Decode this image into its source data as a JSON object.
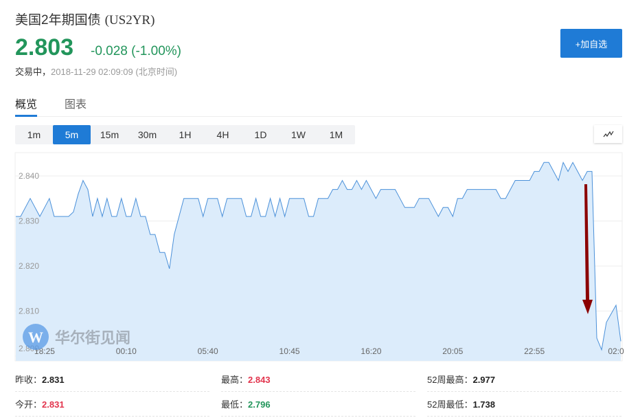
{
  "header": {
    "title": "美国2年期国债",
    "code": "(US2YR)",
    "price": "2.803",
    "change": "-0.028 (-1.00%)",
    "status": "交易中，",
    "timestamp": "2018-11-29 02:09:09",
    "timezone": "(北京时间)",
    "add_button": "+加自选",
    "price_color": "#22955b"
  },
  "tabs": [
    {
      "label": "概览",
      "active": true
    },
    {
      "label": "图表",
      "active": false
    }
  ],
  "periods": [
    {
      "label": "1m"
    },
    {
      "label": "5m",
      "active": true
    },
    {
      "label": "15m"
    },
    {
      "label": "30m"
    },
    {
      "label": "1H"
    },
    {
      "label": "4H"
    },
    {
      "label": "1D"
    },
    {
      "label": "1W"
    },
    {
      "label": "1M"
    }
  ],
  "chart_type_icon": "line-chart-icon",
  "watermark": "华尔街见闻",
  "chart_data": {
    "type": "area",
    "ylim": [
      2.8,
      2.845
    ],
    "y_ticks": [
      "2.800",
      "2.810",
      "2.820",
      "2.830",
      "2.840"
    ],
    "x_ticks": [
      {
        "label": "18:25",
        "index": 6
      },
      {
        "label": "00:10",
        "index": 23
      },
      {
        "label": "05:40",
        "index": 40
      },
      {
        "label": "10:45",
        "index": 57
      },
      {
        "label": "16:20",
        "index": 74
      },
      {
        "label": "20:05",
        "index": 91
      },
      {
        "label": "22:55",
        "index": 108
      },
      {
        "label": "02:0",
        "index": 125
      }
    ],
    "grid": true,
    "line_color": "#4a90d9",
    "fill_color": "#dcecfb",
    "annotation": {
      "type": "arrow",
      "color": "#8b0000",
      "direction": "down"
    },
    "values": [
      2.831,
      2.831,
      2.833,
      2.835,
      2.833,
      2.831,
      2.833,
      2.835,
      2.831,
      2.831,
      2.831,
      2.831,
      2.832,
      2.836,
      2.839,
      2.837,
      2.831,
      2.835,
      2.831,
      2.835,
      2.831,
      2.831,
      2.835,
      2.831,
      2.831,
      2.835,
      2.831,
      2.831,
      2.827,
      2.827,
      2.823,
      2.823,
      2.8194,
      2.827,
      2.831,
      2.835,
      2.835,
      2.835,
      2.835,
      2.831,
      2.835,
      2.835,
      2.835,
      2.831,
      2.835,
      2.835,
      2.835,
      2.835,
      2.831,
      2.831,
      2.835,
      2.831,
      2.831,
      2.835,
      2.831,
      2.835,
      2.831,
      2.835,
      2.835,
      2.835,
      2.835,
      2.831,
      2.831,
      2.835,
      2.835,
      2.835,
      2.837,
      2.837,
      2.839,
      2.837,
      2.837,
      2.839,
      2.837,
      2.839,
      2.837,
      2.835,
      2.837,
      2.837,
      2.837,
      2.837,
      2.835,
      2.833,
      2.833,
      2.833,
      2.835,
      2.835,
      2.835,
      2.833,
      2.831,
      2.833,
      2.833,
      2.831,
      2.835,
      2.835,
      2.837,
      2.837,
      2.837,
      2.837,
      2.837,
      2.837,
      2.837,
      2.835,
      2.835,
      2.837,
      2.839,
      2.839,
      2.839,
      2.839,
      2.841,
      2.841,
      2.843,
      2.843,
      2.841,
      2.839,
      2.843,
      2.841,
      2.843,
      2.841,
      2.839,
      2.841,
      2.841,
      2.804,
      2.8014,
      2.8075,
      2.8094,
      2.8113,
      2.8033
    ]
  },
  "stats": [
    {
      "label": "昨收：",
      "value": "2.831",
      "color": "dark"
    },
    {
      "label": "最高：",
      "value": "2.843",
      "color": "red"
    },
    {
      "label": "52周最高：",
      "value": "2.977",
      "color": "dark"
    },
    {
      "label": "今开：",
      "value": "2.831",
      "color": "red"
    },
    {
      "label": "最低：",
      "value": "2.796",
      "color": "green"
    },
    {
      "label": "52周最低：",
      "value": "1.738",
      "color": "dark"
    }
  ]
}
